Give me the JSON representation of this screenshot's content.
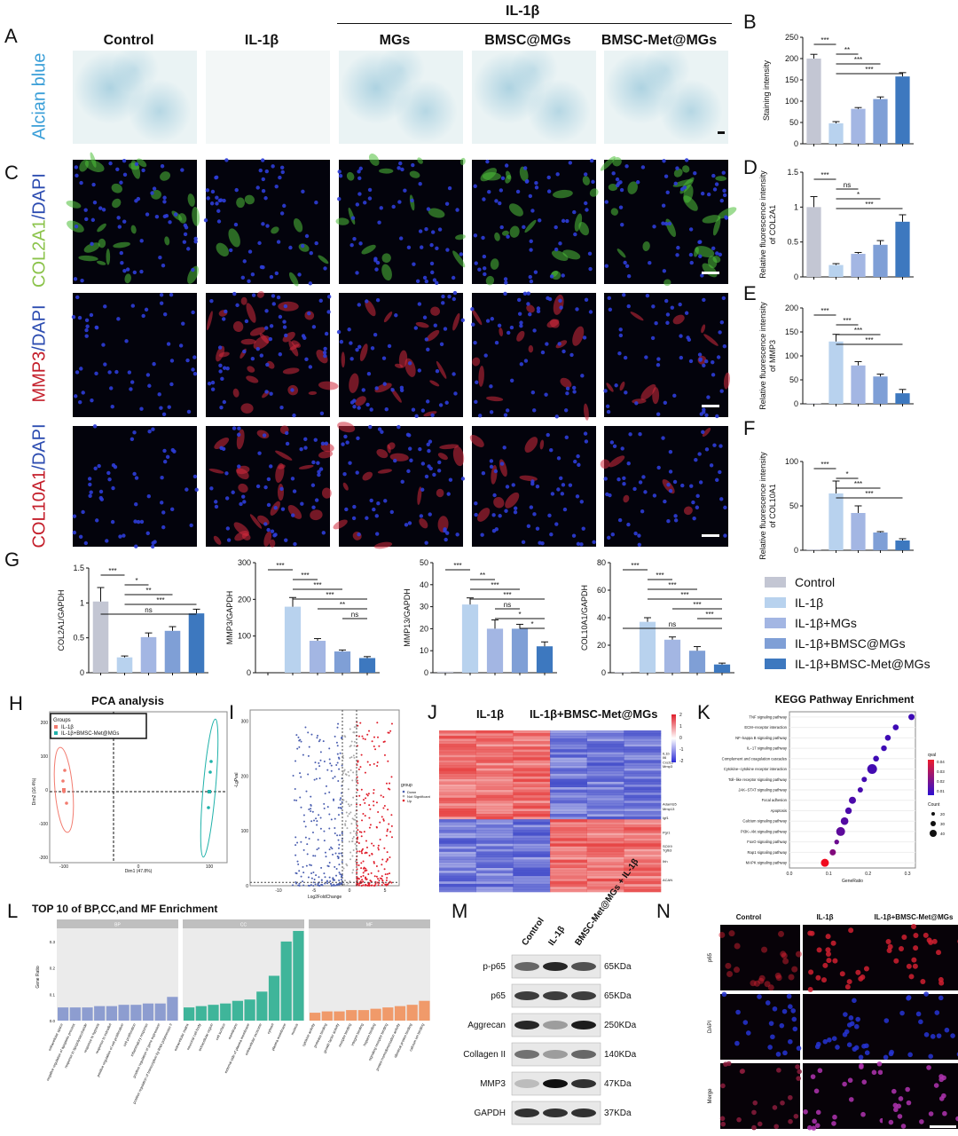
{
  "panels": {
    "A": "A",
    "B": "B",
    "C": "C",
    "D": "D",
    "E": "E",
    "F": "F",
    "G": "G",
    "H": "H",
    "I": "I",
    "J": "J",
    "K": "K",
    "L": "L",
    "M": "M",
    "N": "N"
  },
  "header": {
    "il1b_bracket": "IL-1β",
    "columns": [
      "Control",
      "IL-1β",
      "MGs",
      "BMSC@MGs",
      "BMSC-Met@MGs"
    ]
  },
  "row_labels": {
    "alcian": "Alcian blue",
    "col2a1_a": "COL2A1",
    "col2a1_b": "/DAPI",
    "mmp3_a": "MMP3",
    "mmp3_b": "/DAPI",
    "col10a1_a": "COL10A1",
    "col10a1_b": "/DAPI"
  },
  "colors": {
    "control": "#c3c6d3",
    "il1b": "#b8d2ee",
    "mgs": "#a3b6e3",
    "bmsc": "#7f9fd6",
    "met": "#3d78bf",
    "alcian": "#3b9fd8",
    "green": "#8bc34a",
    "red": "#c41e2a",
    "blue": "#2b4bb0"
  },
  "legend": {
    "items": [
      "Control",
      "IL-1β",
      "IL-1β+MGs",
      "IL-1β+BMSC@MGs",
      "IL-1β+BMSC-Met@MGs"
    ]
  },
  "chart_data": [
    {
      "id": "B",
      "type": "bar",
      "categories": [
        "Control",
        "IL-1β",
        "IL-1β+MGs",
        "IL-1β+BMSC@MGs",
        "IL-1β+BMSC-Met@MGs"
      ],
      "values": [
        200,
        48,
        82,
        105,
        158
      ],
      "errors": [
        10,
        4,
        3,
        5,
        9
      ],
      "ylabel": "Staining intensity",
      "ylim": [
        0,
        250
      ],
      "yticks": [
        0,
        50,
        100,
        150,
        200,
        250
      ],
      "sig": [
        {
          "a": 0,
          "b": 1,
          "t": "***"
        },
        {
          "a": 1,
          "b": 2,
          "t": "**"
        },
        {
          "a": 1,
          "b": 3,
          "t": "***"
        },
        {
          "a": 1,
          "b": 4,
          "t": "***"
        }
      ]
    },
    {
      "id": "D",
      "type": "bar",
      "categories": [
        "Control",
        "IL-1β",
        "IL-1β+MGs",
        "IL-1β+BMSC@MGs",
        "IL-1β+BMSC-Met@MGs"
      ],
      "values": [
        1.0,
        0.17,
        0.33,
        0.46,
        0.79
      ],
      "errors": [
        0.15,
        0.02,
        0.02,
        0.06,
        0.1
      ],
      "ylabel": "Relative fluorescence intensity of COL2A1",
      "ylim": [
        0,
        1.5
      ],
      "yticks": [
        0.0,
        0.5,
        1.0,
        1.5
      ],
      "sig": [
        {
          "a": 0,
          "b": 1,
          "t": "***"
        },
        {
          "a": 1,
          "b": 2,
          "t": "ns"
        },
        {
          "a": 1,
          "b": 3,
          "t": "*"
        },
        {
          "a": 1,
          "b": 4,
          "t": "***"
        }
      ]
    },
    {
      "id": "E",
      "type": "bar",
      "categories": [
        "Control",
        "IL-1β",
        "IL-1β+MGs",
        "IL-1β+BMSC@MGs",
        "IL-1β+BMSC-Met@MGs"
      ],
      "values": [
        1,
        130,
        80,
        57,
        22
      ],
      "errors": [
        0,
        15,
        8,
        5,
        8
      ],
      "ylabel": "Relative fluorescence intensity of MMP3",
      "ylim": [
        0,
        200
      ],
      "yticks": [
        0,
        50,
        100,
        150,
        200
      ],
      "sig": [
        {
          "a": 0,
          "b": 1,
          "t": "***"
        },
        {
          "a": 1,
          "b": 2,
          "t": "***"
        },
        {
          "a": 1,
          "b": 3,
          "t": "***"
        },
        {
          "a": 1,
          "b": 4,
          "t": "***"
        }
      ]
    },
    {
      "id": "F",
      "type": "bar",
      "categories": [
        "Control",
        "IL-1β",
        "IL-1β+MGs",
        "IL-1β+BMSC@MGs",
        "IL-1β+BMSC-Met@MGs"
      ],
      "values": [
        1,
        64,
        42,
        20,
        11
      ],
      "errors": [
        0,
        14,
        8,
        1,
        2
      ],
      "ylabel": "Relative fluorescence intensity of COL10A1",
      "ylim": [
        0,
        100
      ],
      "yticks": [
        0,
        50,
        100
      ],
      "sig": [
        {
          "a": 0,
          "b": 1,
          "t": "***"
        },
        {
          "a": 1,
          "b": 2,
          "t": "*"
        },
        {
          "a": 1,
          "b": 3,
          "t": "***"
        },
        {
          "a": 1,
          "b": 4,
          "t": "***"
        }
      ]
    },
    {
      "id": "G1",
      "type": "bar",
      "categories": [
        "Control",
        "IL-1β",
        "IL-1β+MGs",
        "IL-1β+BMSC@MGs",
        "IL-1β+BMSC-Met@MGs"
      ],
      "values": [
        1.02,
        0.22,
        0.51,
        0.6,
        0.85
      ],
      "errors": [
        0.2,
        0.02,
        0.06,
        0.06,
        0.06
      ],
      "ylabel": "COL2A1/GAPDH",
      "ylim": [
        0,
        1.5
      ],
      "yticks": [
        0.0,
        0.5,
        1.0,
        1.5
      ],
      "sig": [
        {
          "a": 0,
          "b": 1,
          "t": "***"
        },
        {
          "a": 1,
          "b": 2,
          "t": "*"
        },
        {
          "a": 1,
          "b": 3,
          "t": "**"
        },
        {
          "a": 1,
          "b": 4,
          "t": "***"
        },
        {
          "a": 0,
          "b": 4,
          "t": "ns"
        }
      ]
    },
    {
      "id": "G2",
      "type": "bar",
      "categories": [
        "Control",
        "IL-1β",
        "IL-1β+MGs",
        "IL-1β+BMSC@MGs",
        "IL-1β+BMSC-Met@MGs"
      ],
      "values": [
        0,
        180,
        87,
        58,
        40
      ],
      "errors": [
        0,
        25,
        6,
        4,
        4
      ],
      "ylabel": "MMP3/GAPDH",
      "ylim": [
        0,
        300
      ],
      "yticks": [
        0,
        100,
        200,
        300
      ],
      "sig": [
        {
          "a": 0,
          "b": 1,
          "t": "***"
        },
        {
          "a": 1,
          "b": 2,
          "t": "***"
        },
        {
          "a": 1,
          "b": 3,
          "t": "***"
        },
        {
          "a": 1,
          "b": 4,
          "t": "***"
        },
        {
          "a": 2,
          "b": 4,
          "t": "**"
        },
        {
          "a": 3,
          "b": 4,
          "t": "ns"
        }
      ]
    },
    {
      "id": "G3",
      "type": "bar",
      "categories": [
        "Control",
        "IL-1β",
        "IL-1β+MGs",
        "IL-1β+BMSC@MGs",
        "IL-1β+BMSC-Met@MGs"
      ],
      "values": [
        0.5,
        31,
        20,
        20,
        12
      ],
      "errors": [
        0,
        3,
        4,
        2,
        2
      ],
      "ylabel": "MMP13/GAPDH",
      "ylim": [
        0,
        50
      ],
      "yticks": [
        0,
        10,
        20,
        30,
        40,
        50
      ],
      "sig": [
        {
          "a": 0,
          "b": 1,
          "t": "***"
        },
        {
          "a": 1,
          "b": 2,
          "t": "**"
        },
        {
          "a": 1,
          "b": 3,
          "t": "***"
        },
        {
          "a": 1,
          "b": 4,
          "t": "***"
        },
        {
          "a": 2,
          "b": 3,
          "t": "ns"
        },
        {
          "a": 2,
          "b": 4,
          "t": "*"
        },
        {
          "a": 3,
          "b": 4,
          "t": "*"
        }
      ]
    },
    {
      "id": "G4",
      "type": "bar",
      "categories": [
        "Control",
        "IL-1β",
        "IL-1β+MGs",
        "IL-1β+BMSC@MGs",
        "IL-1β+BMSC-Met@MGs"
      ],
      "values": [
        0.5,
        37,
        24,
        16,
        6
      ],
      "errors": [
        0,
        3,
        2,
        3,
        1
      ],
      "ylabel": "COL10A1/GAPDH",
      "ylim": [
        0,
        80
      ],
      "yticks": [
        0,
        20,
        40,
        60,
        80
      ],
      "sig": [
        {
          "a": 0,
          "b": 1,
          "t": "***"
        },
        {
          "a": 1,
          "b": 2,
          "t": "***"
        },
        {
          "a": 1,
          "b": 3,
          "t": "***"
        },
        {
          "a": 1,
          "b": 4,
          "t": "***"
        },
        {
          "a": 2,
          "b": 4,
          "t": "***"
        },
        {
          "a": 3,
          "b": 4,
          "t": "***"
        },
        {
          "a": 0,
          "b": 4,
          "t": "ns"
        }
      ]
    },
    {
      "id": "K",
      "type": "scatter",
      "title": "KEGG Pathway Enrichment",
      "xlabel": "GeneRatio",
      "xlim": [
        0,
        0.32
      ],
      "xticks": [
        0.0,
        0.1,
        0.2,
        0.3
      ],
      "categories": [
        "TNF signaling pathway",
        "ECM−receptor interaction",
        "NF−kappa B signaling pathway",
        "IL−17 signaling pathway",
        "Complement and coagulation cascades",
        "Cytokine−cytokine receptor interaction",
        "Toll−like receptor signaling pathway",
        "JAK−STAT signaling pathway",
        "Focal adhesion",
        "Apoptosis",
        "Calcium signaling pathway",
        "PI3K−Akt signaling pathway",
        "FoxO signaling pathway",
        "Rap1 signaling pathway",
        "MAPK signaling pathway"
      ],
      "x": [
        0.31,
        0.27,
        0.25,
        0.24,
        0.22,
        0.21,
        0.19,
        0.18,
        0.16,
        0.15,
        0.14,
        0.13,
        0.12,
        0.11,
        0.09
      ],
      "counts": [
        20,
        18,
        18,
        17,
        18,
        40,
        15,
        15,
        25,
        22,
        28,
        35,
        12,
        20,
        30
      ],
      "qval": [
        0.005,
        0.005,
        0.005,
        0.005,
        0.005,
        0.006,
        0.006,
        0.007,
        0.008,
        0.008,
        0.01,
        0.012,
        0.015,
        0.02,
        0.045
      ],
      "legend_qval": {
        "title": "qval",
        "ticks": [
          "0.04",
          "0.03",
          "0.02",
          "0.01"
        ]
      },
      "legend_count": {
        "title": "Count",
        "ticks": [
          "20",
          "30",
          "40"
        ]
      }
    },
    {
      "id": "L",
      "type": "bar",
      "title": "TOP 10 of BP,CC,and MF Enrichment",
      "ylabel": "Gene Ratio",
      "facets": [
        "BP",
        "CC",
        "MF"
      ],
      "yticks": [
        "0.0",
        "0.1",
        "0.2",
        "0.3"
      ],
      "ylim": [
        0,
        0.35
      ],
      "series": [
        {
          "name": "BP",
          "values": [
            0.05,
            0.05,
            0.05,
            0.055,
            0.055,
            0.06,
            0.06,
            0.065,
            0.065,
            0.09
          ],
          "categories": [
            "extracellular space",
            "negative regulation of apoptotic process",
            "response to lipopolysaccharide",
            "response to hypoxia",
            "response to estradiol",
            "positive regulation of cell proliferation",
            "cell proliferation",
            "inflammatory response",
            "positive regulation of gene expression",
            "positive regulation of transcription by RNA polymerase II"
          ]
        },
        {
          "name": "CC",
          "values": [
            0.05,
            0.055,
            0.06,
            0.065,
            0.075,
            0.08,
            0.11,
            0.17,
            0.3,
            0.34
          ],
          "categories": [
            "extracellular matrix",
            "neuronal cell body",
            "extracellular region",
            "cell surface",
            "membrane",
            "external side of plasma membrane",
            "extracellular exosome",
            "cytosol",
            "plasma membrane",
            "nucleus"
          ]
        },
        {
          "name": "MF",
          "values": [
            0.03,
            0.035,
            0.035,
            0.04,
            0.04,
            0.045,
            0.05,
            0.055,
            0.06,
            0.075
          ],
          "categories": [
            "cytokine activity",
            "protease binding",
            "growth factor activity",
            "receptor binding",
            "integrin binding",
            "heparin binding",
            "signaling receptor binding",
            "protein homodimerization activity",
            "identical protein binding",
            "calcium ion binding"
          ]
        }
      ]
    }
  ],
  "pca": {
    "title": "PCA analysis",
    "legend_title": "Groups",
    "groups": [
      "IL-1β",
      "IL-1β+BMSC-Met@MGs"
    ],
    "xlabel": "Dim1 (47.8%)",
    "ylabel": "Dim2 (16.4%)",
    "xticks": [
      "-100",
      "0",
      "100"
    ],
    "yticks": [
      "200",
      "100",
      "0",
      "-100",
      "-200"
    ]
  },
  "volcano": {
    "ylabel": "-LgPval",
    "xlabel": "Log2FoldChange",
    "yticks": [
      "300",
      "200",
      "100",
      "0"
    ],
    "xticks": [
      "-10",
      "-5",
      "0",
      "5"
    ],
    "legend_title": "group",
    "legend": [
      "Down",
      "Not Significant",
      "Up"
    ]
  },
  "heatmap": {
    "col_a": "IL-1β",
    "col_b": "IL-1β+BMSC-Met@MGs",
    "genes": [
      "IL1b",
      "Il6",
      "Cxcl12",
      "Mmp3",
      "Adamts5",
      "Mmp13",
      "Igf1",
      "Pgr1",
      "SOX9",
      "Tgfb3",
      "Ihh",
      "ACAN"
    ],
    "scale": [
      "2",
      "1",
      "0",
      "-1",
      "-2"
    ]
  },
  "western": {
    "lanes": [
      "Control",
      "IL-1β",
      "BMSC-Met@MGs + IL-1β"
    ],
    "rows": [
      {
        "name": "p-p65",
        "kda": "65KDa"
      },
      {
        "name": "p65",
        "kda": "65KDa"
      },
      {
        "name": "Aggrecan",
        "kda": "250KDa"
      },
      {
        "name": "Collagen II",
        "kda": "140KDa"
      },
      {
        "name": "MMP3",
        "kda": "47KDa"
      },
      {
        "name": "GAPDH",
        "kda": "37KDa"
      }
    ]
  },
  "n_panel": {
    "columns": [
      "Control",
      "IL-1β",
      "IL-1β+BMSC-Met@MGs"
    ],
    "rows": [
      "p65",
      "DAPI",
      "Merge"
    ]
  }
}
